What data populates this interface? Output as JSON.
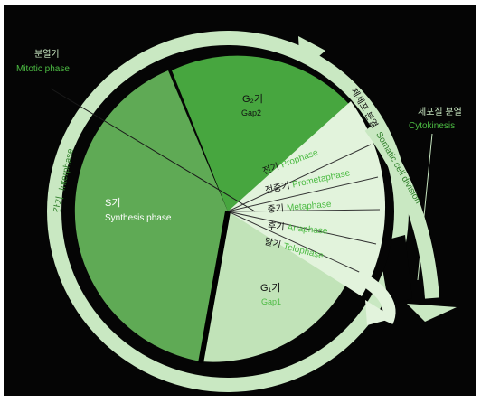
{
  "mitotic_phase": {
    "ko": "분열기",
    "en": "Mitotic phase"
  },
  "cytokinesis": {
    "ko": "세포질 분열",
    "en": "Cytokinesis"
  },
  "interphase": {
    "ko": "간기",
    "en": "Interphase"
  },
  "somatic_division": {
    "ko": "체세포 분열",
    "en": "Somatic cell division"
  },
  "g2": {
    "ko": "G₂기",
    "en": "Gap2"
  },
  "s": {
    "ko": "S기",
    "en": "Synthesis phase"
  },
  "g1": {
    "ko": "G₁기",
    "en": "Gap1"
  },
  "subphases": [
    {
      "ko": "전기",
      "en": "Prophase"
    },
    {
      "ko": "전중기",
      "en": "Prometaphase"
    },
    {
      "ko": "중기",
      "en": "Metaphase"
    },
    {
      "ko": "후기",
      "en": "Anaphase"
    },
    {
      "ko": "말기",
      "en": "Telophase"
    }
  ],
  "colors": {
    "background": "#050505",
    "ring": "#c9e8c2",
    "s_phase": "#5faa55",
    "g2_phase": "#47a63f",
    "g1_phase": "#c1e3b8",
    "m_phase": "#e2f3dc",
    "accent_green": "#4cbb43",
    "divider": "#000000"
  }
}
